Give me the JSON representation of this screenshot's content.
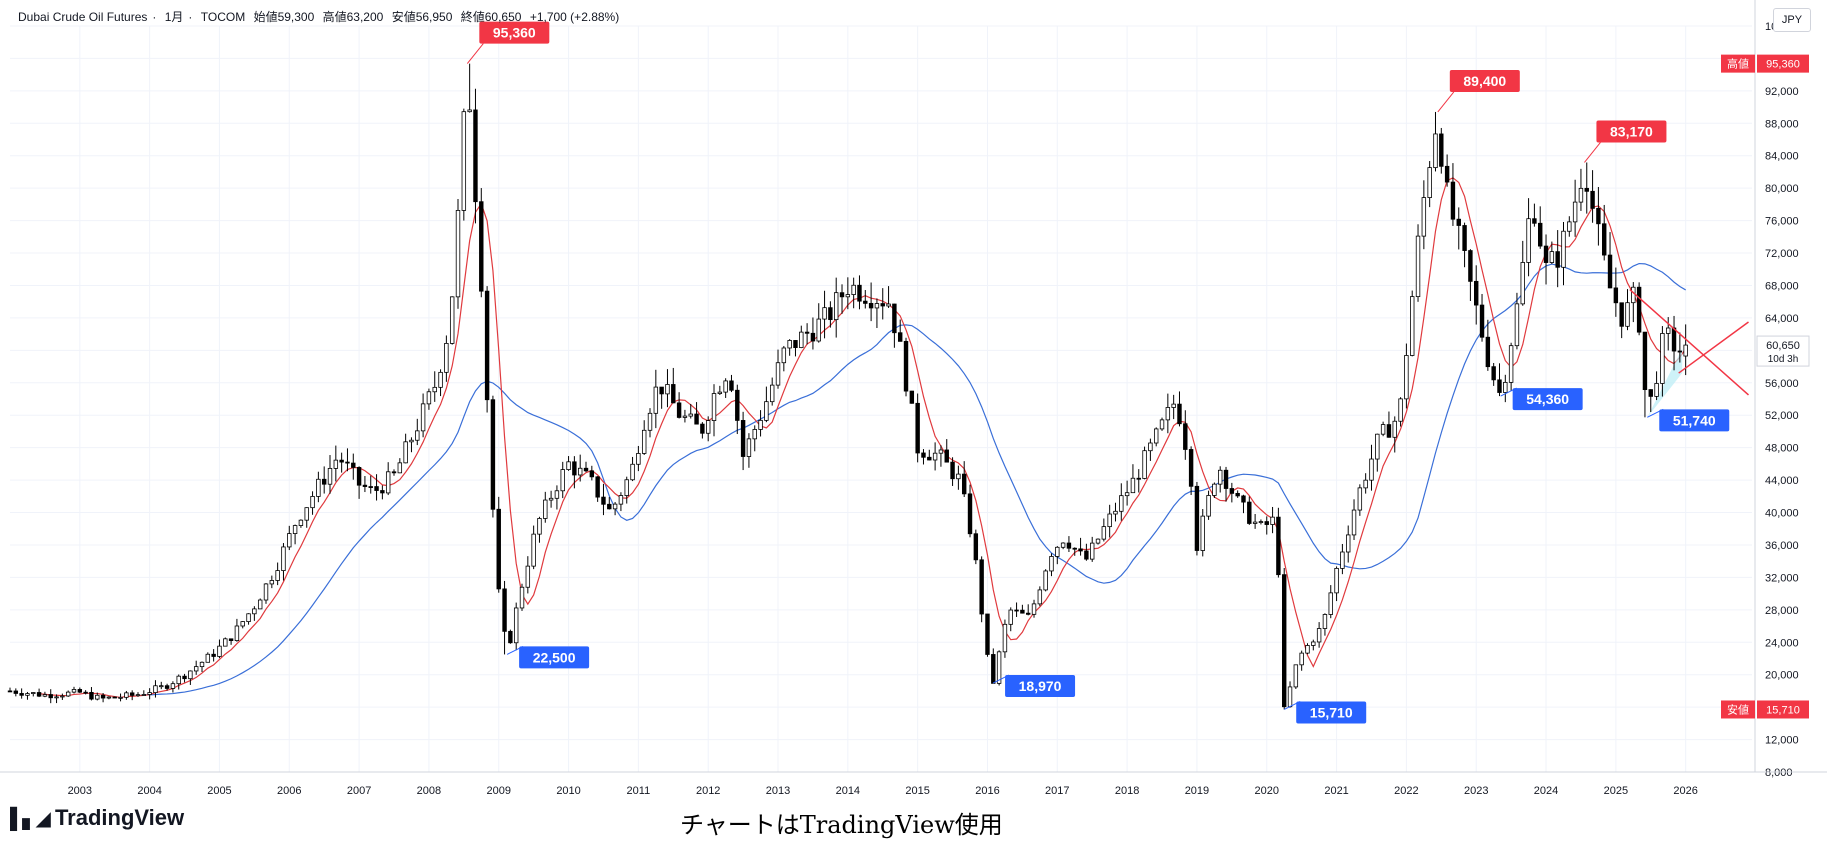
{
  "header": {
    "symbol": "Dubai Crude Oil Futures",
    "interval": "1月",
    "exchange": "TOCOM",
    "open": "始値59,300",
    "high": "高値63,200",
    "low": "安値56,950",
    "close": "終値60,650",
    "change": "+1,700 (+2.88%)"
  },
  "currency": "JPY",
  "footer": {
    "watermark": "TradingView",
    "caption": "チャートはTradingView使用"
  },
  "colors": {
    "up": "#ffffff",
    "down": "#000000",
    "ma_short": "#e03a3e",
    "ma_long": "#3a6fd8",
    "high_label": "#f23645",
    "low_label": "#2962ff",
    "trend_lines": "#f23645",
    "triangle_fill": "#b9ecf5"
  },
  "chart_data": {
    "type": "candlestick",
    "title": "",
    "x_axis": {
      "ticks": [
        "2003",
        "2004",
        "2005",
        "2006",
        "2007",
        "2008",
        "2009",
        "2010",
        "2011",
        "2012",
        "2013",
        "2014",
        "2015",
        "2016",
        "2017",
        "2018",
        "2019",
        "2020",
        "2021",
        "2022",
        "2023",
        "2024",
        "2025",
        "2026"
      ]
    },
    "y_axis": {
      "ylim": [
        8000,
        100000
      ],
      "ticks": [
        "8,000",
        "12,000",
        "16,000",
        "20,000",
        "24,000",
        "28,000",
        "32,000",
        "36,000",
        "40,000",
        "44,000",
        "48,000",
        "52,000",
        "56,000",
        "60,000",
        "64,000",
        "68,000",
        "72,000",
        "76,000",
        "80,000",
        "84,000",
        "88,000",
        "92,000",
        "96,000",
        "100,000"
      ],
      "grid": true
    },
    "price_path": [
      [
        2002.0,
        18000
      ],
      [
        2002.5,
        17500
      ],
      [
        2003.0,
        17800
      ],
      [
        2003.3,
        17000
      ],
      [
        2003.8,
        17500
      ],
      [
        2004.2,
        18500
      ],
      [
        2004.5,
        20000
      ],
      [
        2004.9,
        22500
      ],
      [
        2005.2,
        25000
      ],
      [
        2005.5,
        28500
      ],
      [
        2005.8,
        33000
      ],
      [
        2006.1,
        39000
      ],
      [
        2006.4,
        43000
      ],
      [
        2006.7,
        47000
      ],
      [
        2007.0,
        43500
      ],
      [
        2007.2,
        42500
      ],
      [
        2007.5,
        44500
      ],
      [
        2007.9,
        52000
      ],
      [
        2008.1,
        56000
      ],
      [
        2008.3,
        63500
      ],
      [
        2008.45,
        80000
      ],
      [
        2008.55,
        95360
      ],
      [
        2008.65,
        82000
      ],
      [
        2008.78,
        65000
      ],
      [
        2008.88,
        45000
      ],
      [
        2009.0,
        30000
      ],
      [
        2009.12,
        22500
      ],
      [
        2009.3,
        30000
      ],
      [
        2009.55,
        38500
      ],
      [
        2009.8,
        43000
      ],
      [
        2010.0,
        46000
      ],
      [
        2010.3,
        44000
      ],
      [
        2010.6,
        40000
      ],
      [
        2010.9,
        45000
      ],
      [
        2011.1,
        52000
      ],
      [
        2011.3,
        56000
      ],
      [
        2011.6,
        52000
      ],
      [
        2011.9,
        50000
      ],
      [
        2012.1,
        55000
      ],
      [
        2012.3,
        58000
      ],
      [
        2012.5,
        47000
      ],
      [
        2012.8,
        53000
      ],
      [
        2013.1,
        60000
      ],
      [
        2013.4,
        62000
      ],
      [
        2013.7,
        64000
      ],
      [
        2014.0,
        68000
      ],
      [
        2014.3,
        67000
      ],
      [
        2014.6,
        66000
      ],
      [
        2014.8,
        58000
      ],
      [
        2015.0,
        48000
      ],
      [
        2015.3,
        47000
      ],
      [
        2015.6,
        44000
      ],
      [
        2015.8,
        36000
      ],
      [
        2016.0,
        22000
      ],
      [
        2016.08,
        18970
      ],
      [
        2016.3,
        28000
      ],
      [
        2016.6,
        27000
      ],
      [
        2016.9,
        35000
      ],
      [
        2017.1,
        37000
      ],
      [
        2017.4,
        34000
      ],
      [
        2017.8,
        40000
      ],
      [
        2018.1,
        44000
      ],
      [
        2018.4,
        49000
      ],
      [
        2018.7,
        54000
      ],
      [
        2018.9,
        46000
      ],
      [
        2019.0,
        36000
      ],
      [
        2019.3,
        46000
      ],
      [
        2019.6,
        41000
      ],
      [
        2019.9,
        38000
      ],
      [
        2020.1,
        39000
      ],
      [
        2020.2,
        30000
      ],
      [
        2020.25,
        15710
      ],
      [
        2020.45,
        22000
      ],
      [
        2020.8,
        26000
      ],
      [
        2021.0,
        33000
      ],
      [
        2021.3,
        42000
      ],
      [
        2021.6,
        49000
      ],
      [
        2021.9,
        52000
      ],
      [
        2022.0,
        60000
      ],
      [
        2022.15,
        72000
      ],
      [
        2022.3,
        82000
      ],
      [
        2022.45,
        89400
      ],
      [
        2022.55,
        80000
      ],
      [
        2022.8,
        72000
      ],
      [
        2023.0,
        65000
      ],
      [
        2023.2,
        58000
      ],
      [
        2023.35,
        54360
      ],
      [
        2023.6,
        66000
      ],
      [
        2023.8,
        79000
      ],
      [
        2024.0,
        70000
      ],
      [
        2024.2,
        72000
      ],
      [
        2024.4,
        78000
      ],
      [
        2024.55,
        83170
      ],
      [
        2024.7,
        76000
      ],
      [
        2024.9,
        68000
      ],
      [
        2025.1,
        64000
      ],
      [
        2025.3,
        67000
      ],
      [
        2025.45,
        51740
      ],
      [
        2025.7,
        62000
      ],
      [
        2025.9,
        60000
      ],
      [
        2026.0,
        60650
      ]
    ],
    "moving_averages": [
      {
        "label": "short",
        "color": "#e03a3e"
      },
      {
        "label": "long",
        "color": "#3a6fd8"
      }
    ],
    "annotations": {
      "highs": [
        {
          "label": "95,360",
          "x": 2008.55,
          "y": 95360
        },
        {
          "label": "89,400",
          "x": 2022.45,
          "y": 89400
        },
        {
          "label": "83,170",
          "x": 2024.55,
          "y": 83170
        }
      ],
      "lows": [
        {
          "label": "22,500",
          "x": 2009.12,
          "y": 22500
        },
        {
          "label": "18,970",
          "x": 2016.08,
          "y": 18970
        },
        {
          "label": "15,710",
          "x": 2020.25,
          "y": 15710
        },
        {
          "label": "54,360",
          "x": 2023.35,
          "y": 54360
        },
        {
          "label": "51,740",
          "x": 2025.45,
          "y": 51740
        }
      ]
    },
    "trend_lines": [
      {
        "from": [
          2025.2,
          67500
        ],
        "to": [
          2026.9,
          54500
        ]
      },
      {
        "from": [
          2025.9,
          57200
        ],
        "to": [
          2026.9,
          63500
        ]
      }
    ],
    "price_badges": [
      {
        "label": "高値",
        "value": "95,360",
        "y": 95360,
        "color": "#f23645"
      },
      {
        "label": "",
        "value": "60,650",
        "y": 60650,
        "color": "#ffffff",
        "sub": "10d 3h"
      },
      {
        "label": "安値",
        "value": "15,710",
        "y": 15710,
        "color": "#f23645"
      }
    ]
  }
}
